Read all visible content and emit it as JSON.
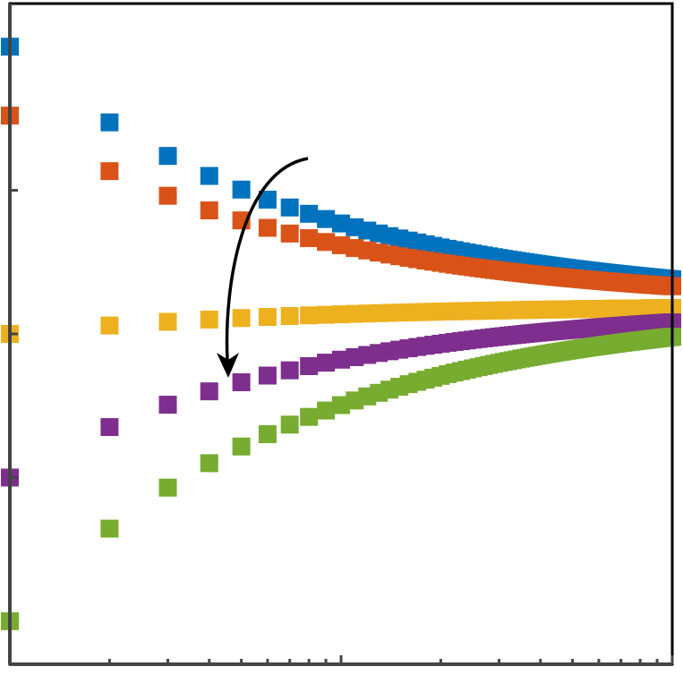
{
  "chart_data": {
    "type": "scatter",
    "title": "",
    "xlabel": "",
    "ylabel": "",
    "x_scale": "log",
    "xlim": [
      1,
      100
    ],
    "ylim": [
      -1.15,
      1.15
    ],
    "grid": false,
    "legend": "none",
    "annotation": {
      "type": "curved-arrow"
    },
    "series": [
      {
        "color": "#0072BD",
        "x0": 1,
        "y0": 1.0,
        "x_max": 100,
        "marker": "square"
      },
      {
        "color": "#D95319",
        "x0": 1,
        "y0": 0.76,
        "x_max": 100,
        "marker": "square"
      },
      {
        "color": "#EDB120",
        "x0": 1,
        "y0": 0.0,
        "x_max": 100,
        "marker": "square"
      },
      {
        "color": "#7E2F8E",
        "x0": 1,
        "y0": -0.5,
        "x_max": 100,
        "marker": "square"
      },
      {
        "color": "#77AC30",
        "x0": 1,
        "y0": -1.0,
        "x_max": 100,
        "marker": "square"
      }
    ],
    "y_limit": 0.1
  }
}
